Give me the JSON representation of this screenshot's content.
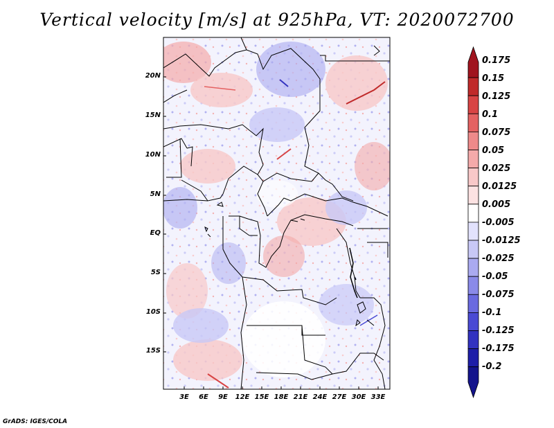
{
  "title": "Vertical velocity [m/s] at 925hPa, VT: 2020072700",
  "footer": "GrADS: IGES/COLA",
  "map": {
    "lat_ticks": [
      "20N",
      "15N",
      "10N",
      "5N",
      "EQ",
      "5S",
      "10S",
      "15S"
    ],
    "lon_ticks": [
      "3E",
      "6E",
      "9E",
      "12E",
      "15E",
      "18E",
      "21E",
      "24E",
      "27E",
      "30E",
      "33E"
    ]
  },
  "colorbar": {
    "labels": [
      "0.175",
      "0.15",
      "0.125",
      "0.1",
      "0.075",
      "0.05",
      "0.025",
      "0.0125",
      "0.005",
      "-0.005",
      "-0.0125",
      "-0.025",
      "-0.05",
      "-0.075",
      "-0.1",
      "-0.125",
      "-0.175",
      "-0.2"
    ],
    "colors": [
      "#a0141e",
      "#c02a2a",
      "#d84444",
      "#e46262",
      "#ee8a8a",
      "#f4aaaa",
      "#f8c8c8",
      "#fce2e2",
      "#ffffff",
      "#e2e2fc",
      "#c8c8f6",
      "#aaaaf0",
      "#8a8ae8",
      "#6a6ae0",
      "#4a4ad4",
      "#3232c0",
      "#1e1ea8",
      "#14148c"
    ]
  }
}
